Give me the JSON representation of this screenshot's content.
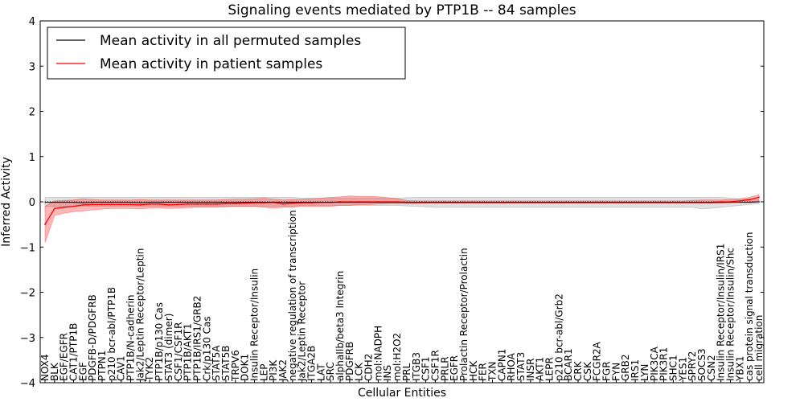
{
  "chart_data": {
    "type": "line",
    "title": "Signaling events mediated by PTP1B -- 84 samples",
    "xlabel": "Cellular Entities",
    "ylabel": "Inferred Activity",
    "ylim": [
      -4,
      4
    ],
    "yticks": [
      "−4",
      "−3",
      "−2",
      "−1",
      "0",
      "1",
      "2",
      "3",
      "4"
    ],
    "grid": false,
    "legend_position": "top-left",
    "categories": [
      "NOX4",
      "BLK",
      "EGF/EGFR",
      "CAT1/PTP1B",
      "EGF",
      "PDGFB-D/PDGFRB",
      "PTPN1",
      "p210 bcr-abl/PTP1B",
      "CAV1",
      "PTP1B/N-cadherin",
      "Jak2/Leptin Receptor/Leptin",
      "TYK2",
      "PTP1B/p130 Cas",
      "STAT3 (dimer)",
      "CSF1/CSF1R",
      "PTP1B/AKT1",
      "PTP1B/IRS1/GRB2",
      "Crk/p130 Cas",
      "STAT5A",
      "STAT5B",
      "TRPV6",
      "DOK1",
      "Insulin Receptor/Insulin",
      "LEP",
      "PI3K",
      "JAK2",
      "negative regulation of transcription",
      "Jak2/Leptin Receptor",
      "ITGA2B",
      "LAT",
      "SRC",
      "alphaIIb/beta3 Integrin",
      "PDGFRB",
      "LCK",
      "CDH2",
      "mol:NADPH",
      "INS",
      "mol:H2O2",
      "PRL",
      "ITGB3",
      "CSF1",
      "CSF1R",
      "PRLR",
      "EGFR",
      "Prolactin Receptor/Prolactin",
      "HCK",
      "FER",
      "TXN",
      "CAPN1",
      "RHOA",
      "STAT3",
      "INSR",
      "AKT1",
      "LEPR",
      "p210 bcr-abl/Grb2",
      "BCAR1",
      "CRK",
      "CSK",
      "FCGR2A",
      "FGR",
      "FYN",
      "GRB2",
      "IRS1",
      "LYN",
      "PIK3CA",
      "PIK3R1",
      "SHC1",
      "YES1",
      "SPRY2",
      "SOCS3",
      "CSN2",
      "Insulin Receptor/Insulin/IRS1",
      "Insulin Receptor/Insulin/Shc",
      "YBX1",
      "cas protein signal transduction",
      "cell migration"
    ],
    "series": [
      {
        "name": "Mean activity in all permuted samples",
        "color": "#000000",
        "values": [
          -0.01,
          -0.01,
          -0.01,
          -0.01,
          -0.02,
          -0.01,
          -0.01,
          -0.01,
          -0.01,
          -0.01,
          -0.02,
          -0.01,
          -0.01,
          -0.01,
          -0.01,
          -0.01,
          -0.01,
          -0.01,
          -0.01,
          -0.01,
          -0.01,
          -0.01,
          -0.01,
          -0.01,
          -0.01,
          -0.01,
          -0.01,
          -0.01,
          -0.01,
          -0.01,
          -0.01,
          -0.01,
          -0.01,
          -0.01,
          -0.01,
          -0.01,
          -0.01,
          -0.01,
          -0.01,
          -0.01,
          -0.01,
          -0.01,
          -0.01,
          -0.01,
          -0.01,
          -0.01,
          -0.01,
          -0.01,
          -0.01,
          -0.01,
          -0.01,
          -0.01,
          -0.01,
          -0.01,
          -0.01,
          -0.01,
          -0.01,
          -0.01,
          -0.01,
          -0.01,
          -0.01,
          -0.01,
          -0.01,
          -0.01,
          -0.01,
          -0.01,
          -0.01,
          -0.01,
          -0.01,
          -0.01,
          -0.01,
          -0.01,
          -0.01,
          -0.01,
          -0.01,
          0.0
        ],
        "band_low": [
          -0.1,
          -0.1,
          -0.1,
          -0.1,
          -0.1,
          -0.1,
          -0.1,
          -0.1,
          -0.1,
          -0.1,
          -0.1,
          -0.1,
          -0.1,
          -0.1,
          -0.1,
          -0.1,
          -0.1,
          -0.1,
          -0.1,
          -0.1,
          -0.1,
          -0.1,
          -0.1,
          -0.1,
          -0.1,
          -0.1,
          -0.1,
          -0.08,
          -0.08,
          -0.08,
          -0.08,
          -0.08,
          -0.08,
          -0.08,
          -0.08,
          -0.08,
          -0.08,
          -0.08,
          -0.09,
          -0.1,
          -0.11,
          -0.12,
          -0.12,
          -0.12,
          -0.12,
          -0.12,
          -0.12,
          -0.12,
          -0.12,
          -0.12,
          -0.12,
          -0.12,
          -0.12,
          -0.12,
          -0.12,
          -0.12,
          -0.12,
          -0.12,
          -0.12,
          -0.12,
          -0.12,
          -0.12,
          -0.12,
          -0.12,
          -0.12,
          -0.12,
          -0.12,
          -0.12,
          -0.12,
          -0.16,
          -0.14,
          -0.12,
          -0.1,
          -0.08,
          -0.06,
          -0.04
        ],
        "band_high": [
          0.1,
          0.1,
          0.1,
          0.1,
          0.1,
          0.1,
          0.1,
          0.1,
          0.1,
          0.1,
          0.1,
          0.1,
          0.1,
          0.1,
          0.1,
          0.1,
          0.1,
          0.1,
          0.1,
          0.1,
          0.1,
          0.1,
          0.1,
          0.1,
          0.1,
          0.1,
          0.1,
          0.08,
          0.08,
          0.08,
          0.08,
          0.08,
          0.08,
          0.08,
          0.08,
          0.08,
          0.08,
          0.08,
          0.09,
          0.1,
          0.1,
          0.1,
          0.1,
          0.1,
          0.1,
          0.1,
          0.1,
          0.1,
          0.1,
          0.1,
          0.1,
          0.1,
          0.1,
          0.1,
          0.1,
          0.1,
          0.1,
          0.1,
          0.1,
          0.1,
          0.1,
          0.1,
          0.1,
          0.1,
          0.1,
          0.1,
          0.1,
          0.1,
          0.1,
          0.1,
          0.1,
          0.1,
          0.08,
          0.06,
          0.05,
          0.04
        ]
      },
      {
        "name": "Mean activity in patient samples",
        "color": "#ff0000",
        "values": [
          -0.5,
          -0.15,
          -0.12,
          -0.1,
          -0.07,
          -0.06,
          -0.06,
          -0.06,
          -0.06,
          -0.06,
          -0.07,
          -0.05,
          -0.05,
          -0.07,
          -0.06,
          -0.05,
          -0.05,
          -0.05,
          -0.05,
          -0.04,
          -0.04,
          -0.03,
          -0.02,
          -0.02,
          -0.01,
          -0.05,
          -0.03,
          -0.02,
          -0.02,
          -0.01,
          -0.01,
          0.0,
          0.0,
          0.0,
          0.0,
          0.0,
          0.0,
          0.0,
          -0.01,
          -0.01,
          -0.01,
          -0.01,
          -0.01,
          -0.01,
          -0.01,
          -0.01,
          -0.01,
          -0.01,
          -0.01,
          -0.01,
          -0.01,
          -0.01,
          -0.01,
          -0.01,
          -0.01,
          -0.01,
          -0.01,
          -0.01,
          -0.01,
          -0.01,
          -0.01,
          -0.01,
          -0.01,
          -0.01,
          -0.01,
          -0.01,
          -0.01,
          -0.01,
          -0.01,
          -0.01,
          -0.01,
          0.0,
          0.0,
          0.02,
          0.05,
          0.1
        ],
        "band_low": [
          -0.9,
          -0.3,
          -0.25,
          -0.22,
          -0.2,
          -0.18,
          -0.16,
          -0.15,
          -0.15,
          -0.15,
          -0.16,
          -0.14,
          -0.13,
          -0.15,
          -0.14,
          -0.13,
          -0.12,
          -0.12,
          -0.12,
          -0.11,
          -0.1,
          -0.1,
          -0.1,
          -0.12,
          -0.14,
          -0.12,
          -0.12,
          -0.1,
          -0.1,
          -0.1,
          -0.1,
          -0.08,
          -0.08,
          -0.06,
          -0.06,
          -0.05,
          -0.04,
          -0.04,
          -0.04,
          -0.04,
          -0.03,
          -0.03,
          -0.03,
          -0.03,
          -0.03,
          -0.03,
          -0.03,
          -0.03,
          -0.03,
          -0.03,
          -0.03,
          -0.03,
          -0.03,
          -0.03,
          -0.03,
          -0.03,
          -0.03,
          -0.03,
          -0.03,
          -0.03,
          -0.03,
          -0.03,
          -0.03,
          -0.03,
          -0.03,
          -0.03,
          -0.03,
          -0.03,
          -0.03,
          -0.03,
          -0.03,
          -0.03,
          -0.02,
          -0.01,
          0.0,
          0.02
        ],
        "band_high": [
          -0.1,
          0.02,
          0.03,
          0.04,
          0.07,
          0.05,
          0.04,
          0.04,
          0.04,
          0.04,
          0.05,
          0.04,
          0.04,
          0.04,
          0.04,
          0.04,
          0.04,
          0.04,
          0.04,
          0.05,
          0.06,
          0.06,
          0.07,
          0.08,
          0.06,
          0.04,
          0.05,
          0.06,
          0.07,
          0.08,
          0.1,
          0.11,
          0.13,
          0.12,
          0.12,
          0.11,
          0.09,
          0.07,
          0.03,
          0.02,
          0.02,
          0.02,
          0.02,
          0.02,
          0.02,
          0.02,
          0.02,
          0.02,
          0.02,
          0.02,
          0.02,
          0.02,
          0.02,
          0.02,
          0.02,
          0.02,
          0.02,
          0.02,
          0.02,
          0.02,
          0.02,
          0.02,
          0.02,
          0.02,
          0.02,
          0.02,
          0.02,
          0.02,
          0.03,
          0.04,
          0.04,
          0.04,
          0.05,
          0.07,
          0.1,
          0.16
        ]
      }
    ]
  }
}
